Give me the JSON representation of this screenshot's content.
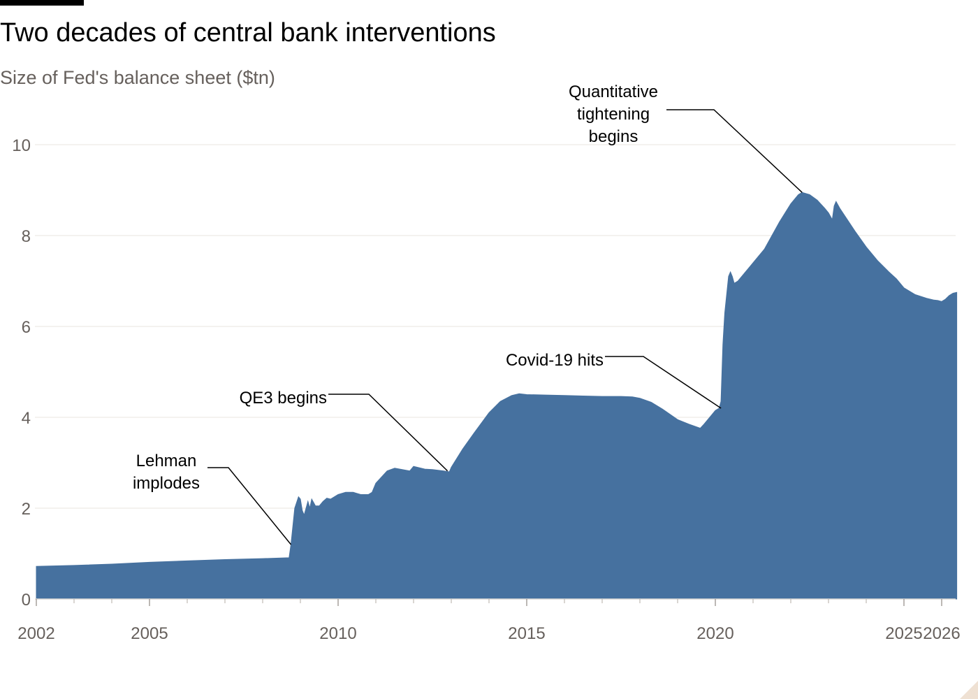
{
  "header": {
    "title": "Two decades of central bank interventions",
    "subtitle": "Size of Fed's balance sheet ($tn)"
  },
  "colors": {
    "area": "#46719f",
    "gridline": "#e9e4df",
    "axis": "#dedad5",
    "tick_text": "#66605c",
    "annotation_line": "#000000"
  },
  "chart_data": {
    "type": "area",
    "title": "Two decades of central bank interventions",
    "subtitle": "Size of Fed's balance sheet ($tn)",
    "xlabel": "",
    "ylabel": "",
    "xlim": [
      2002,
      2026.4
    ],
    "ylim": [
      0,
      10
    ],
    "grid": true,
    "x_ticks": [
      2002,
      2005,
      2010,
      2015,
      2020,
      2025,
      2026
    ],
    "y_ticks": [
      0,
      2,
      4,
      6,
      8,
      10
    ],
    "series": [
      {
        "x": [
          2002.0,
          2003.0,
          2004.0,
          2005.0,
          2006.0,
          2007.0,
          2008.0,
          2008.7,
          2008.75,
          2008.85,
          2008.95,
          2009.0,
          2009.05,
          2009.1,
          2009.2,
          2009.25,
          2009.3,
          2009.4,
          2009.5,
          2009.6,
          2009.7,
          2009.8,
          2010.0,
          2010.2,
          2010.4,
          2010.6,
          2010.8,
          2010.9,
          2011.0,
          2011.3,
          2011.5,
          2011.7,
          2011.9,
          2012.0,
          2012.1,
          2012.3,
          2012.5,
          2012.8,
          2012.95,
          2013.0,
          2013.3,
          2013.6,
          2014.0,
          2014.3,
          2014.6,
          2014.8,
          2015.0,
          2015.5,
          2016.0,
          2016.5,
          2017.0,
          2017.5,
          2017.8,
          2018.0,
          2018.3,
          2018.6,
          2019.0,
          2019.3,
          2019.6,
          2019.7,
          2019.8,
          2019.9,
          2020.0,
          2020.1,
          2020.15,
          2020.2,
          2020.25,
          2020.3,
          2020.35,
          2020.4,
          2020.45,
          2020.5,
          2020.6,
          2020.8,
          2021.0,
          2021.3,
          2021.5,
          2021.7,
          2022.0,
          2022.2,
          2022.3,
          2022.5,
          2022.7,
          2022.9,
          2023.0,
          2023.1,
          2023.15,
          2023.2,
          2023.3,
          2023.5,
          2023.7,
          2024.0,
          2024.3,
          2024.6,
          2024.8,
          2025.0,
          2025.3,
          2025.6,
          2025.8,
          2025.9,
          2026.0
        ],
        "values": [
          0.72,
          0.74,
          0.77,
          0.81,
          0.84,
          0.87,
          0.89,
          0.91,
          1.2,
          2.0,
          2.25,
          2.2,
          1.95,
          1.85,
          2.15,
          2.0,
          2.2,
          2.05,
          2.05,
          2.15,
          2.22,
          2.2,
          2.3,
          2.35,
          2.35,
          2.3,
          2.3,
          2.35,
          2.55,
          2.82,
          2.88,
          2.85,
          2.82,
          2.92,
          2.9,
          2.86,
          2.85,
          2.82,
          2.8,
          2.9,
          3.3,
          3.65,
          4.1,
          4.35,
          4.48,
          4.52,
          4.5,
          4.49,
          4.48,
          4.47,
          4.46,
          4.46,
          4.45,
          4.42,
          4.33,
          4.18,
          3.95,
          3.85,
          3.76,
          3.85,
          3.95,
          4.05,
          4.15,
          4.2,
          4.35,
          5.6,
          6.3,
          6.7,
          7.1,
          7.2,
          7.1,
          6.95,
          7.0,
          7.2,
          7.4,
          7.7,
          8.0,
          8.3,
          8.7,
          8.9,
          8.95,
          8.9,
          8.78,
          8.6,
          8.5,
          8.35,
          8.65,
          8.75,
          8.6,
          8.35,
          8.1,
          7.75,
          7.45,
          7.2,
          7.05,
          6.85,
          6.7,
          6.62,
          6.58,
          6.57,
          6.55
        ],
        "extra_x": [
          2026.1,
          2026.2,
          2026.3,
          2026.4
        ],
        "extra_values": [
          6.6,
          6.68,
          6.73,
          6.75
        ]
      }
    ],
    "annotations": [
      {
        "label_lines": [
          "Lehman",
          "implodes"
        ],
        "x": 2008.75,
        "y": 1.2
      },
      {
        "label_lines": [
          "QE3 begins"
        ],
        "x": 2012.9,
        "y": 2.82
      },
      {
        "label_lines": [
          "Covid-19 hits"
        ],
        "x": 2020.15,
        "y": 4.2
      },
      {
        "label_lines": [
          "Quantitative",
          "tightening",
          "begins"
        ],
        "x": 2022.3,
        "y": 8.95
      }
    ]
  }
}
